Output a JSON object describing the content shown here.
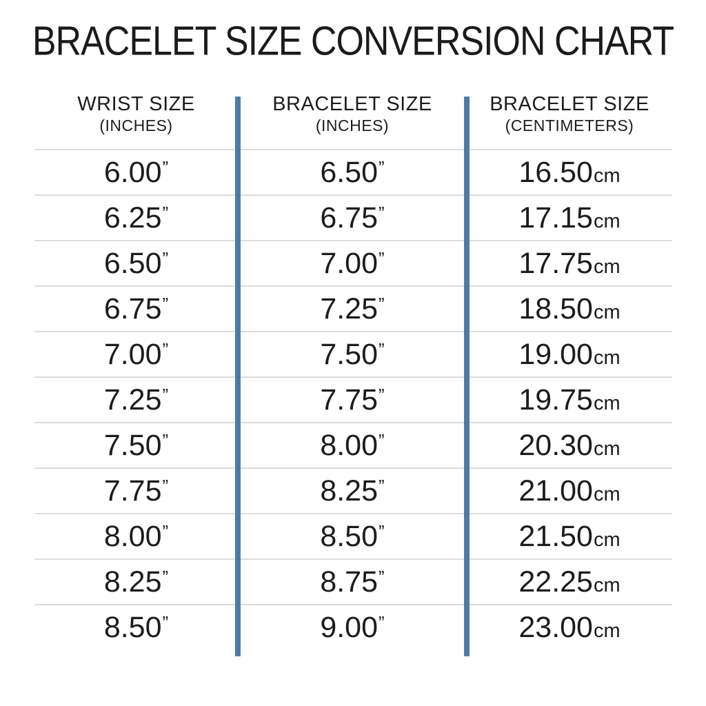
{
  "title": "BRACELET SIZE CONVERSION CHART",
  "columns": [
    {
      "label": "WRIST SIZE",
      "sublabel": "(INCHES)"
    },
    {
      "label": "BRACELET SIZE",
      "sublabel": "(INCHES)"
    },
    {
      "label": "BRACELET SIZE",
      "sublabel": "(CENTIMETERS)"
    }
  ],
  "units": {
    "inch": "”",
    "cm": "cm"
  },
  "rows": [
    {
      "wrist_in": "6.00",
      "bracelet_in": "6.50",
      "bracelet_cm": "16.50"
    },
    {
      "wrist_in": "6.25",
      "bracelet_in": "6.75",
      "bracelet_cm": "17.15"
    },
    {
      "wrist_in": "6.50",
      "bracelet_in": "7.00",
      "bracelet_cm": "17.75"
    },
    {
      "wrist_in": "6.75",
      "bracelet_in": "7.25",
      "bracelet_cm": "18.50"
    },
    {
      "wrist_in": "7.00",
      "bracelet_in": "7.50",
      "bracelet_cm": "19.00"
    },
    {
      "wrist_in": "7.25",
      "bracelet_in": "7.75",
      "bracelet_cm": "19.75"
    },
    {
      "wrist_in": "7.50",
      "bracelet_in": "8.00",
      "bracelet_cm": "20.30"
    },
    {
      "wrist_in": "7.75",
      "bracelet_in": "8.25",
      "bracelet_cm": "21.00"
    },
    {
      "wrist_in": "8.00",
      "bracelet_in": "8.50",
      "bracelet_cm": "21.50"
    },
    {
      "wrist_in": "8.25",
      "bracelet_in": "8.75",
      "bracelet_cm": "22.25"
    },
    {
      "wrist_in": "8.50",
      "bracelet_in": "9.00",
      "bracelet_cm": "23.00"
    }
  ],
  "colors": {
    "divider_blue": "#4e7ba6",
    "row_line": "#d8dde2",
    "text": "#1c1c1c",
    "background": "#ffffff"
  },
  "chart_data": {
    "type": "table",
    "title": "BRACELET SIZE CONVERSION CHART",
    "columns": [
      "WRIST SIZE (INCHES)",
      "BRACELET SIZE (INCHES)",
      "BRACELET SIZE (CENTIMETERS)"
    ],
    "rows": [
      [
        "6.00\"",
        "6.50\"",
        "16.50cm"
      ],
      [
        "6.25\"",
        "6.75\"",
        "17.15cm"
      ],
      [
        "6.50\"",
        "7.00\"",
        "17.75cm"
      ],
      [
        "6.75\"",
        "7.25\"",
        "18.50cm"
      ],
      [
        "7.00\"",
        "7.50\"",
        "19.00cm"
      ],
      [
        "7.25\"",
        "7.75\"",
        "19.75cm"
      ],
      [
        "7.50\"",
        "8.00\"",
        "20.30cm"
      ],
      [
        "7.75\"",
        "8.25\"",
        "21.00cm"
      ],
      [
        "8.00\"",
        "8.50\"",
        "21.50cm"
      ],
      [
        "8.25\"",
        "8.75\"",
        "22.25cm"
      ],
      [
        "8.50\"",
        "9.00\"",
        "23.00cm"
      ]
    ],
    "layout": {
      "column_dividers": "vertical steel-blue bars between columns",
      "row_separators": "light gray horizontal lines",
      "grid": "horizontal lines only, no outer border"
    }
  }
}
